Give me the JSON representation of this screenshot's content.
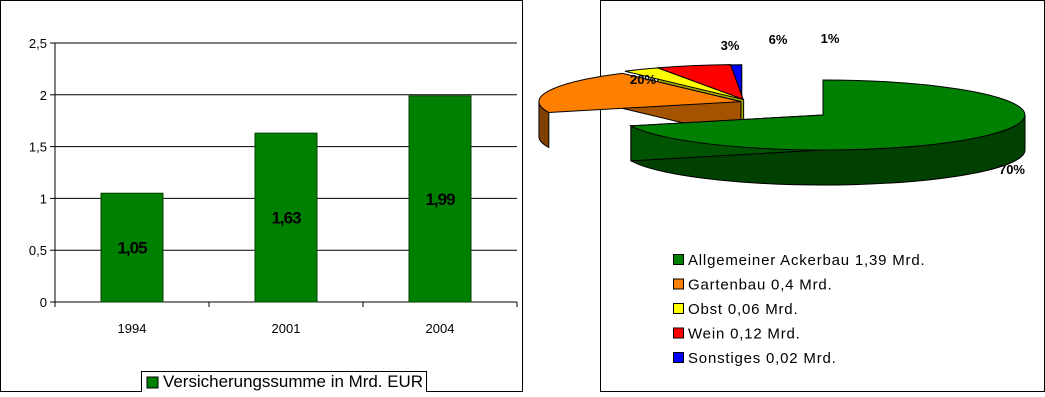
{
  "chart_data": [
    {
      "type": "bar",
      "categories": [
        "1994",
        "2001",
        "2004"
      ],
      "series": [
        {
          "name": "Versicherungssumme in Mrd. EUR",
          "values": [
            1.05,
            1.63,
            1.99
          ]
        }
      ],
      "data_labels": [
        "1,05",
        "1,63",
        "1,99"
      ],
      "yticks": [
        "0",
        "0,5",
        "1",
        "1,5",
        "2",
        "2,5"
      ],
      "ylim": [
        0,
        2.5
      ],
      "grid": true,
      "legend_position": "bottom",
      "colors": {
        "bar": "#008000",
        "bar_dark": "#004000",
        "label": "#000000",
        "grid": "#000000"
      }
    },
    {
      "type": "pie",
      "slices": [
        {
          "name": "Allgemeiner Ackerbau 1,39 Mrd.",
          "value": 70,
          "label": "70%",
          "color": "#008000"
        },
        {
          "name": "Gartenbau 0,4 Mrd.",
          "value": 20,
          "label": "20%",
          "color": "#ff8000"
        },
        {
          "name": "Obst 0,06 Mrd.",
          "value": 3,
          "label": "3%",
          "color": "#ffff00"
        },
        {
          "name": "Wein 0,12 Mrd.",
          "value": 6,
          "label": "6%",
          "color": "#ff0000"
        },
        {
          "name": "Sonstiges 0,02 Mrd.",
          "value": 1,
          "label": "1%",
          "color": "#0000ff"
        }
      ],
      "three_d": true,
      "legend_position": "bottom"
    }
  ]
}
